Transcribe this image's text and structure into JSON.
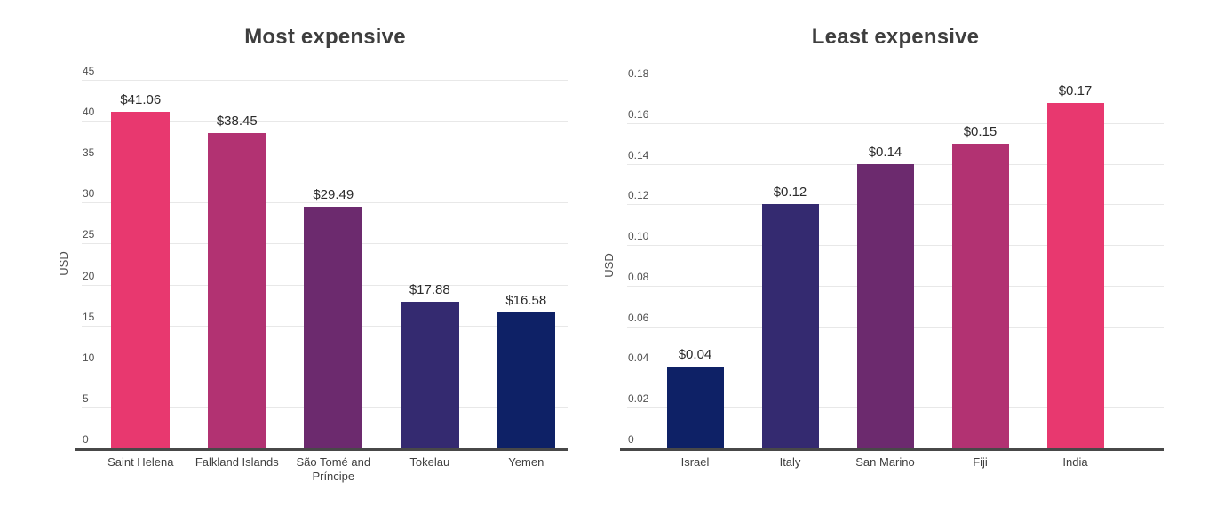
{
  "page": {
    "background": "#ffffff"
  },
  "chart_data": [
    {
      "type": "bar",
      "title": "Most expensive",
      "ylabel": "USD",
      "xlabel": "",
      "categories": [
        "Saint Helena",
        "Falkland Islands",
        "São Tomé and Príncipe",
        "Tokelau",
        "Yemen"
      ],
      "values": [
        41.06,
        38.45,
        29.49,
        17.88,
        16.58
      ],
      "value_labels": [
        "$41.06",
        "$38.45",
        "$29.49",
        "$17.88",
        "$16.58"
      ],
      "bar_colors": [
        "#E8386F",
        "#B23272",
        "#6C2A6E",
        "#342A70",
        "#0E2166"
      ],
      "ylim": [
        0,
        45
      ],
      "yticks": [
        "45",
        "40",
        "35",
        "30",
        "25",
        "20",
        "15",
        "10",
        "5",
        "0"
      ],
      "grid": true,
      "legend": "none"
    },
    {
      "type": "bar",
      "title": "Least expensive",
      "ylabel": "USD",
      "xlabel": "",
      "categories": [
        "Israel",
        "Italy",
        "San Marino",
        "Fiji",
        "India"
      ],
      "values": [
        0.04,
        0.12,
        0.14,
        0.15,
        0.17
      ],
      "value_labels": [
        "$0.04",
        "$0.12",
        "$0.14",
        "$0.15",
        "$0.17"
      ],
      "bar_colors": [
        "#0E2166",
        "#342A70",
        "#6C2A6E",
        "#B23272",
        "#E8386F"
      ],
      "ylim": [
        0,
        0.18
      ],
      "yticks": [
        "0.18",
        "0.16",
        "0.14",
        "0.12",
        "0.10",
        "0.08",
        "0.06",
        "0.04",
        "0.02",
        "0"
      ],
      "grid": true,
      "legend": "none"
    }
  ]
}
